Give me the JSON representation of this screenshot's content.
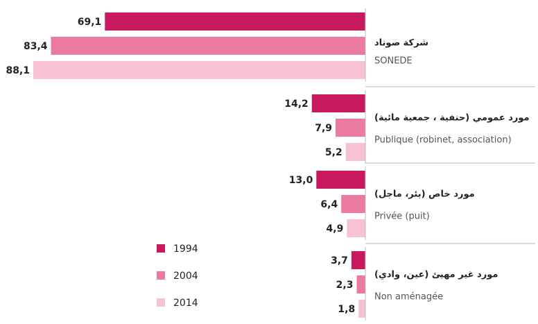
{
  "chart_data": {
    "type": "hbar",
    "categories": [
      "شركة صوناد",
      "مورد عمومي (حنفية ، جمعية مائية)",
      "مورد خاص (بئر، ماجل)",
      "مورد غير مهيئ (عين، وادي)"
    ],
    "subcategories": [
      "SONEDE",
      "Publique (robinet, association)",
      "Privée (puit)",
      "Non aménagée"
    ],
    "series": [
      {
        "name": "1994",
        "color": "#c8185e",
        "values": [
          69.1,
          14.2,
          13.0,
          3.7
        ],
        "value_labels": [
          "69,1",
          "14,2",
          "13,0",
          "3,7"
        ]
      },
      {
        "name": "2004",
        "color": "#ea7aa2",
        "values": [
          83.4,
          7.9,
          6.4,
          2.3
        ],
        "value_labels": [
          "83,4",
          "7,9",
          "6,4",
          "2,3"
        ]
      },
      {
        "name": "2014",
        "color": "#f7c3d3",
        "values": [
          88.1,
          5.2,
          4.9,
          1.8
        ],
        "value_labels": [
          "88,1",
          "5,2",
          "4,9",
          "1,8"
        ]
      }
    ]
  }
}
